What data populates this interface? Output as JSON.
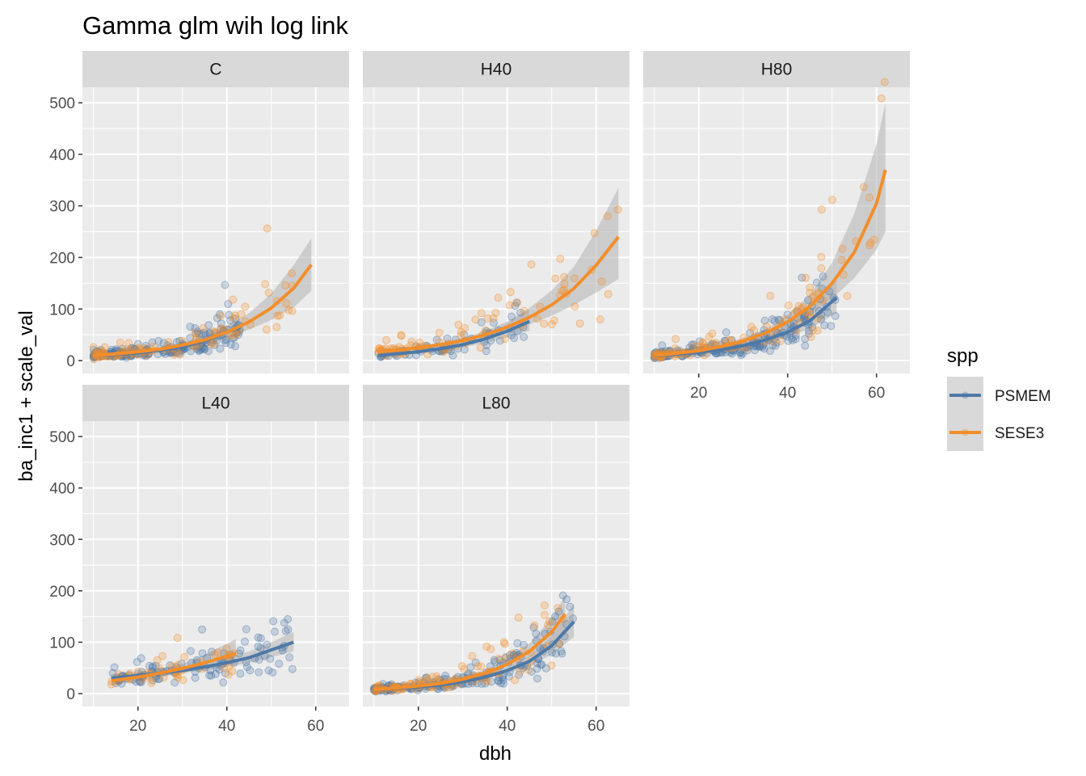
{
  "title": "Gamma glm wih log link",
  "chart_data": {
    "type": "scatter",
    "facet_by": "",
    "panels": [
      {
        "label": "C",
        "x_range": [
          10,
          59
        ],
        "n_psmem": 210,
        "n_sese3": 90,
        "fits": {
          "PSMEM": {
            "x": [
              10,
              15,
              20,
              25,
              30,
              35,
              40,
              43
            ],
            "y": [
              10,
              12,
              15,
              20,
              27,
              38,
              55,
              65
            ],
            "se_low": [
              8,
              10,
              13,
              17,
              23,
              31,
              43,
              50
            ],
            "se_high": [
              12,
              14,
              18,
              23,
              32,
              46,
              68,
              82
            ]
          },
          "SESE3": {
            "x": [
              10,
              15,
              20,
              25,
              30,
              35,
              40,
              45,
              50,
              55,
              59
            ],
            "y": [
              10,
              13,
              17,
              22,
              30,
              40,
              55,
              75,
              102,
              140,
              186
            ],
            "se_low": [
              7,
              10,
              14,
              19,
              26,
              34,
              45,
              60,
              79,
              103,
              135
            ],
            "se_high": [
              14,
              16,
              20,
              26,
              35,
              47,
              66,
              92,
              130,
              185,
              237
            ]
          }
        }
      },
      {
        "label": "H40",
        "x_range": [
          11,
          65
        ],
        "n_psmem": 70,
        "n_sese3": 90,
        "fits": {
          "PSMEM": {
            "x": [
              11,
              15,
              20,
              25,
              30,
              35,
              40,
              45
            ],
            "y": [
              10,
              13,
              17,
              23,
              31,
              42,
              57,
              76
            ],
            "se_low": [
              7,
              10,
              14,
              19,
              26,
              34,
              45,
              58
            ],
            "se_high": [
              13,
              16,
              21,
              28,
              37,
              51,
              72,
              100
            ]
          },
          "SESE3": {
            "x": [
              11,
              15,
              20,
              25,
              30,
              35,
              40,
              45,
              50,
              55,
              60,
              65
            ],
            "y": [
              17,
              20,
              25,
              31,
              39,
              50,
              65,
              84,
              108,
              140,
              185,
              240
            ],
            "se_low": [
              13,
              17,
              22,
              28,
              35,
              44,
              56,
              70,
              87,
              108,
              132,
              158
            ],
            "se_high": [
              21,
              24,
              29,
              35,
              44,
              57,
              76,
              102,
              136,
              182,
              252,
              335
            ]
          }
        }
      },
      {
        "label": "H80",
        "x_range": [
          10,
          62
        ],
        "n_psmem": 220,
        "n_sese3": 110,
        "fits": {
          "PSMEM": {
            "x": [
              10,
              15,
              20,
              25,
              30,
              35,
              40,
              45,
              51
            ],
            "y": [
              9,
              12,
              16,
              21,
              29,
              40,
              55,
              77,
              122
            ],
            "se_low": [
              7,
              10,
              14,
              18,
              25,
              34,
              46,
              62,
              92
            ],
            "se_high": [
              11,
              14,
              19,
              25,
              34,
              47,
              66,
              95,
              162
            ]
          },
          "SESE3": {
            "x": [
              10,
              15,
              20,
              25,
              30,
              35,
              40,
              45,
              50,
              55,
              60,
              62
            ],
            "y": [
              10,
              14,
              19,
              27,
              38,
              53,
              75,
              105,
              150,
              210,
              305,
              370
            ],
            "se_low": [
              7,
              11,
              16,
              23,
              33,
              46,
              64,
              88,
              120,
              160,
              215,
              250
            ],
            "se_high": [
              14,
              17,
              22,
              31,
              44,
              61,
              88,
              128,
              190,
              285,
              420,
              500
            ]
          }
        }
      },
      {
        "label": "L40",
        "x_range": [
          14,
          55
        ],
        "n_psmem": 110,
        "n_sese3": 45,
        "fits": {
          "PSMEM": {
            "x": [
              14,
              20,
              25,
              30,
              35,
              40,
              45,
              50,
              55
            ],
            "y": [
              30,
              35,
              40,
              45,
              52,
              60,
              70,
              85,
              100
            ],
            "se_low": [
              22,
              29,
              35,
              40,
              46,
              52,
              60,
              71,
              82
            ],
            "se_high": [
              38,
              41,
              45,
              51,
              58,
              69,
              82,
              100,
              120
            ]
          },
          "SESE3": {
            "x": [
              14,
              20,
              25,
              30,
              35,
              40,
              42
            ],
            "y": [
              25,
              32,
              40,
              49,
              60,
              73,
              78
            ],
            "se_low": [
              17,
              24,
              32,
              40,
              48,
              55,
              58
            ],
            "se_high": [
              35,
              41,
              49,
              58,
              76,
              97,
              106
            ]
          }
        }
      },
      {
        "label": "L80",
        "x_range": [
          10,
          55
        ],
        "n_psmem": 210,
        "n_sese3": 100,
        "fits": {
          "PSMEM": {
            "x": [
              10,
              15,
              20,
              25,
              30,
              35,
              40,
              45,
              50,
              55
            ],
            "y": [
              8,
              10,
              13,
              17,
              23,
              32,
              45,
              63,
              93,
              140
            ],
            "se_low": [
              6,
              8,
              11,
              15,
              20,
              28,
              39,
              53,
              76,
              110
            ],
            "se_high": [
              10,
              12,
              15,
              19,
              26,
              36,
              52,
              74,
              112,
              175
            ]
          },
          "SESE3": {
            "x": [
              10,
              15,
              20,
              25,
              30,
              35,
              40,
              45,
              50,
              53
            ],
            "y": [
              8,
              11,
              15,
              20,
              28,
              40,
              57,
              82,
              120,
              155
            ],
            "se_low": [
              6,
              9,
              13,
              18,
              25,
              35,
              49,
              69,
              97,
              120
            ],
            "se_high": [
              10,
              13,
              17,
              23,
              32,
              46,
              66,
              98,
              147,
              190
            ]
          }
        }
      }
    ],
    "xlabel": "dbh",
    "ylabel": "ba_inc1 + scale_val",
    "x_ticks": [
      20,
      40,
      60
    ],
    "y_ticks": [
      0,
      100,
      200,
      300,
      400,
      500
    ],
    "xlim": [
      7.5,
      67.5
    ],
    "ylim": [
      -25,
      530
    ],
    "legend": {
      "title": "spp",
      "position": "right",
      "entries": [
        {
          "name": "PSMEM",
          "color": "#4e79a7"
        },
        {
          "name": "SESE3",
          "color": "#f28e2b"
        }
      ]
    },
    "grid": true,
    "point_alpha": 0.25,
    "ribbon_color": "#b3b3b3"
  }
}
